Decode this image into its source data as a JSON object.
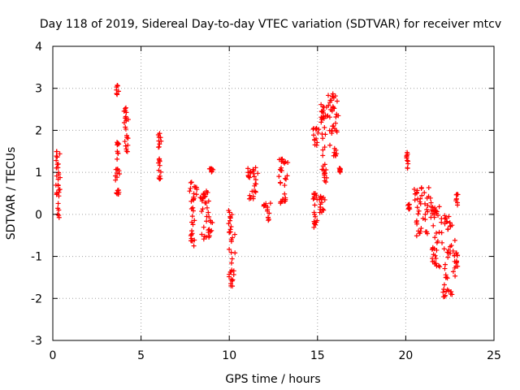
{
  "chart_data": {
    "type": "scatter",
    "title": "Day 118 of 2019, Sidereal Day-to-day VTEC variation (SDTVAR) for receiver mtcv",
    "xlabel": "GPS time / hours",
    "ylabel": "SDTVAR / TECUs",
    "xlim": [
      0,
      25
    ],
    "ylim": [
      -3,
      4
    ],
    "xticks": [
      0,
      5,
      10,
      15,
      20,
      25
    ],
    "yticks": [
      -3,
      -2,
      -1,
      0,
      1,
      2,
      3,
      4
    ],
    "grid": true,
    "marker": "+",
    "marker_color": "#ff0000",
    "series": [
      {
        "name": "SDTVAR",
        "clusters": [
          {
            "x": [
              0.15,
              0.45
            ],
            "y": [
              -0.2,
              1.55
            ]
          },
          {
            "x": [
              3.5,
              3.8
            ],
            "y": [
              0.4,
              1.1
            ]
          },
          {
            "x": [
              3.55,
              3.75
            ],
            "y": [
              2.8,
              3.1
            ]
          },
          {
            "x": [
              3.6,
              3.8
            ],
            "y": [
              1.3,
              1.75
            ]
          },
          {
            "x": [
              4.0,
              4.3
            ],
            "y": [
              1.4,
              2.55
            ]
          },
          {
            "x": [
              5.95,
              6.15
            ],
            "y": [
              0.75,
              1.95
            ]
          },
          {
            "x": [
              7.7,
              8.2
            ],
            "y": [
              -0.75,
              0.8
            ]
          },
          {
            "x": [
              8.2,
              9.2
            ],
            "y": [
              -0.65,
              0.6
            ]
          },
          {
            "x": [
              8.8,
              9.2
            ],
            "y": [
              1.0,
              1.1
            ]
          },
          {
            "x": [
              9.9,
              10.35
            ],
            "y": [
              -1.75,
              0.1
            ]
          },
          {
            "x": [
              10.95,
              11.75
            ],
            "y": [
              0.3,
              1.15
            ]
          },
          {
            "x": [
              11.9,
              12.35
            ],
            "y": [
              -0.15,
              0.3
            ]
          },
          {
            "x": [
              12.7,
              13.4
            ],
            "y": [
              0.2,
              1.4
            ]
          },
          {
            "x": [
              14.7,
              15.0
            ],
            "y": [
              -0.35,
              0.6
            ]
          },
          {
            "x": [
              14.7,
              15.1
            ],
            "y": [
              1.6,
              2.1
            ]
          },
          {
            "x": [
              15.0,
              15.5
            ],
            "y": [
              0.0,
              0.45
            ]
          },
          {
            "x": [
              15.1,
              15.6
            ],
            "y": [
              0.7,
              2.65
            ]
          },
          {
            "x": [
              15.5,
              16.3
            ],
            "y": [
              1.3,
              2.9
            ]
          },
          {
            "x": [
              16.2,
              16.35
            ],
            "y": [
              1.0,
              1.1
            ]
          },
          {
            "x": [
              20.0,
              20.2
            ],
            "y": [
              1.05,
              1.5
            ]
          },
          {
            "x": [
              20.1,
              20.3
            ],
            "y": [
              0.1,
              0.25
            ]
          },
          {
            "x": [
              20.3,
              21.5
            ],
            "y": [
              -0.55,
              0.65
            ]
          },
          {
            "x": [
              21.3,
              22.1
            ],
            "y": [
              -1.3,
              0.3
            ]
          },
          {
            "x": [
              21.9,
              22.9
            ],
            "y": [
              -2.1,
              0.0
            ]
          },
          {
            "x": [
              22.7,
              23.05
            ],
            "y": [
              -1.3,
              -0.9
            ]
          },
          {
            "x": [
              22.8,
              23.0
            ],
            "y": [
              0.2,
              0.5
            ]
          }
        ]
      }
    ]
  }
}
